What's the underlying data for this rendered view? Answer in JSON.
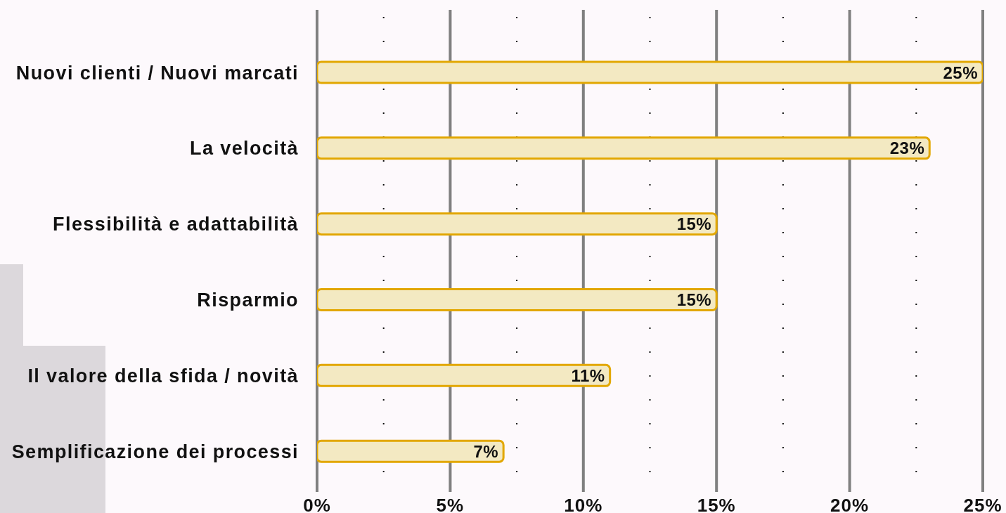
{
  "chart_data": {
    "type": "bar",
    "orientation": "horizontal",
    "categories": [
      "Nuovi clienti / Nuovi marcati",
      "La velocità",
      "Flessibilità e adattabilità",
      "Risparmio",
      "Il valore della sfida / novità",
      "Semplificazione dei processi"
    ],
    "values": [
      25,
      23,
      15,
      15,
      11,
      7
    ],
    "value_labels": [
      "25%",
      "23%",
      "15%",
      "15%",
      "11%",
      "7%"
    ],
    "color": "#f3e9c2",
    "xlim": [
      0,
      25
    ],
    "xticks": [
      {
        "value": 0,
        "label": "0%"
      },
      {
        "value": 2.5,
        "label": null
      },
      {
        "value": 5,
        "label": "5%"
      },
      {
        "value": 7.5,
        "label": null
      },
      {
        "value": 10,
        "label": "10%"
      },
      {
        "value": 12.5,
        "label": null
      },
      {
        "value": 15,
        "label": "15%"
      },
      {
        "value": 17.5,
        "label": null
      },
      {
        "value": 20,
        "label": "20%"
      },
      {
        "value": 22.5,
        "label": null
      },
      {
        "value": 25,
        "label": "25%"
      }
    ],
    "grid": "x"
  }
}
